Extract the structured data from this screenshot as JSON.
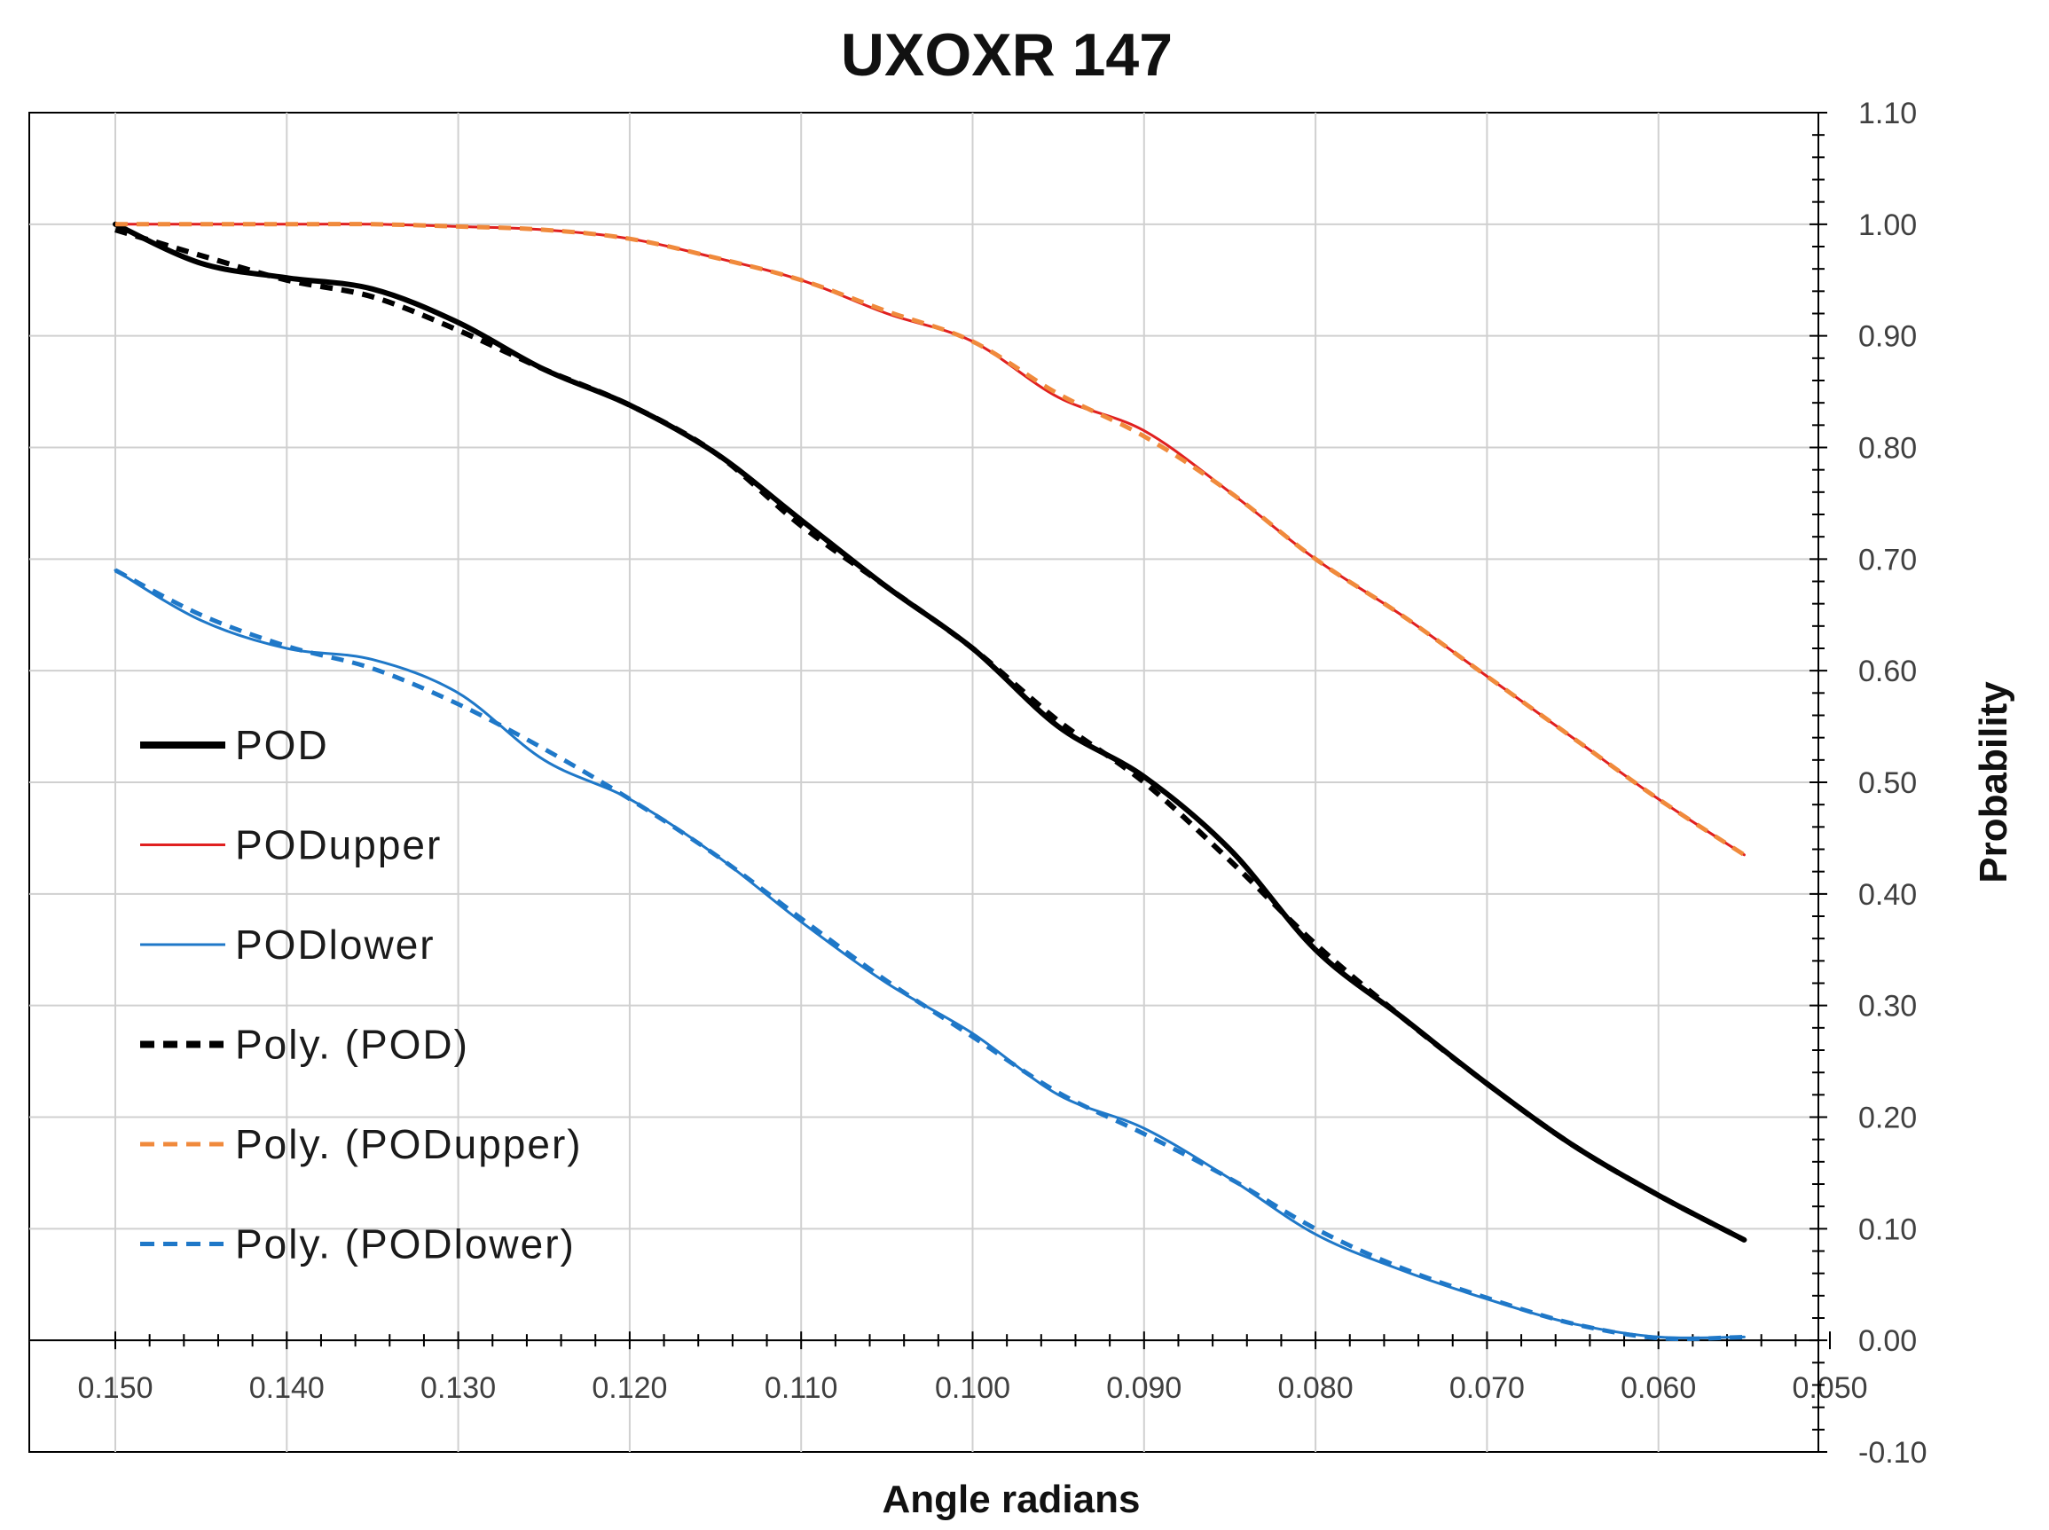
{
  "chart_data": {
    "type": "line",
    "title": "UXOXR 147",
    "xlabel": "Angle radians",
    "ylabel": "Probability",
    "x_reversed": true,
    "xlim": [
      0.15,
      0.05
    ],
    "ylim": [
      -0.1,
      1.1
    ],
    "x_ticks": [
      0.15,
      0.14,
      0.13,
      0.12,
      0.11,
      0.1,
      0.09,
      0.08,
      0.07,
      0.06,
      0.05
    ],
    "x_tick_labels": [
      "0.150",
      "0.140",
      "0.130",
      "0.120",
      "0.110",
      "0.100",
      "0.090",
      "0.080",
      "0.070",
      "0.060",
      "0.050"
    ],
    "y_ticks": [
      -0.1,
      0.0,
      0.1,
      0.2,
      0.3,
      0.4,
      0.5,
      0.6,
      0.7,
      0.8,
      0.9,
      1.0,
      1.1
    ],
    "y_tick_labels": [
      "-0.10",
      "0.00",
      "0.10",
      "0.20",
      "0.30",
      "0.40",
      "0.50",
      "0.60",
      "0.70",
      "0.80",
      "0.90",
      "1.00",
      "1.10"
    ],
    "y_axis_side": "right",
    "grid": true,
    "legend_position": "left",
    "series": [
      {
        "name": "POD",
        "color": "#000000",
        "dashed": false,
        "weight": "bold",
        "x": [
          0.15,
          0.145,
          0.14,
          0.135,
          0.13,
          0.125,
          0.12,
          0.115,
          0.11,
          0.105,
          0.1,
          0.095,
          0.09,
          0.085,
          0.08,
          0.075,
          0.07,
          0.065,
          0.06,
          0.055
        ],
        "y": [
          1.0,
          0.965,
          0.952,
          0.942,
          0.912,
          0.87,
          0.838,
          0.795,
          0.735,
          0.675,
          0.62,
          0.55,
          0.505,
          0.44,
          0.35,
          0.29,
          0.23,
          0.175,
          0.13,
          0.09
        ]
      },
      {
        "name": "PODupper",
        "color": "#e02020",
        "dashed": false,
        "weight": "thin",
        "x": [
          0.15,
          0.145,
          0.14,
          0.135,
          0.13,
          0.125,
          0.12,
          0.115,
          0.11,
          0.105,
          0.1,
          0.095,
          0.09,
          0.085,
          0.08,
          0.075,
          0.07,
          0.065,
          0.06,
          0.055
        ],
        "y": [
          1.0,
          1.0,
          1.0,
          1.0,
          0.998,
          0.995,
          0.987,
          0.97,
          0.95,
          0.92,
          0.895,
          0.845,
          0.815,
          0.76,
          0.7,
          0.65,
          0.595,
          0.54,
          0.485,
          0.435
        ]
      },
      {
        "name": "PODlower",
        "color": "#1f78c8",
        "dashed": false,
        "weight": "thin",
        "x": [
          0.15,
          0.145,
          0.14,
          0.135,
          0.13,
          0.125,
          0.12,
          0.115,
          0.11,
          0.105,
          0.1,
          0.095,
          0.09,
          0.085,
          0.08,
          0.075,
          0.07,
          0.065,
          0.06,
          0.055
        ],
        "y": [
          0.69,
          0.645,
          0.62,
          0.61,
          0.58,
          0.52,
          0.485,
          0.435,
          0.375,
          0.32,
          0.275,
          0.22,
          0.19,
          0.145,
          0.095,
          0.063,
          0.037,
          0.015,
          0.003,
          0.003
        ]
      },
      {
        "name": "Poly. (POD)",
        "color": "#000000",
        "dashed": true,
        "weight": "bold",
        "x": [
          0.15,
          0.145,
          0.14,
          0.135,
          0.13,
          0.125,
          0.12,
          0.115,
          0.11,
          0.105,
          0.1,
          0.095,
          0.09,
          0.085,
          0.08,
          0.075,
          0.07,
          0.065,
          0.06,
          0.055
        ],
        "y": [
          0.995,
          0.972,
          0.95,
          0.935,
          0.905,
          0.87,
          0.838,
          0.795,
          0.73,
          0.675,
          0.62,
          0.555,
          0.5,
          0.43,
          0.355,
          0.29,
          0.23,
          0.175,
          0.13,
          0.09
        ]
      },
      {
        "name": "Poly. (PODupper)",
        "color": "#f08a3c",
        "dashed": true,
        "weight": "normal",
        "x": [
          0.15,
          0.145,
          0.14,
          0.135,
          0.13,
          0.125,
          0.12,
          0.115,
          0.11,
          0.105,
          0.1,
          0.095,
          0.09,
          0.085,
          0.08,
          0.075,
          0.07,
          0.065,
          0.06,
          0.055
        ],
        "y": [
          1.0,
          1.0,
          1.0,
          1.0,
          0.998,
          0.995,
          0.987,
          0.97,
          0.95,
          0.922,
          0.895,
          0.848,
          0.81,
          0.76,
          0.7,
          0.65,
          0.595,
          0.54,
          0.485,
          0.435
        ]
      },
      {
        "name": "Poly. (PODlower)",
        "color": "#1f78c8",
        "dashed": true,
        "weight": "normal",
        "x": [
          0.15,
          0.145,
          0.14,
          0.135,
          0.13,
          0.125,
          0.12,
          0.115,
          0.11,
          0.105,
          0.1,
          0.095,
          0.09,
          0.085,
          0.08,
          0.075,
          0.07,
          0.065,
          0.06,
          0.055
        ],
        "y": [
          0.69,
          0.65,
          0.622,
          0.602,
          0.57,
          0.53,
          0.485,
          0.435,
          0.378,
          0.322,
          0.272,
          0.222,
          0.185,
          0.145,
          0.1,
          0.065,
          0.038,
          0.015,
          0.002,
          0.003
        ]
      }
    ]
  }
}
